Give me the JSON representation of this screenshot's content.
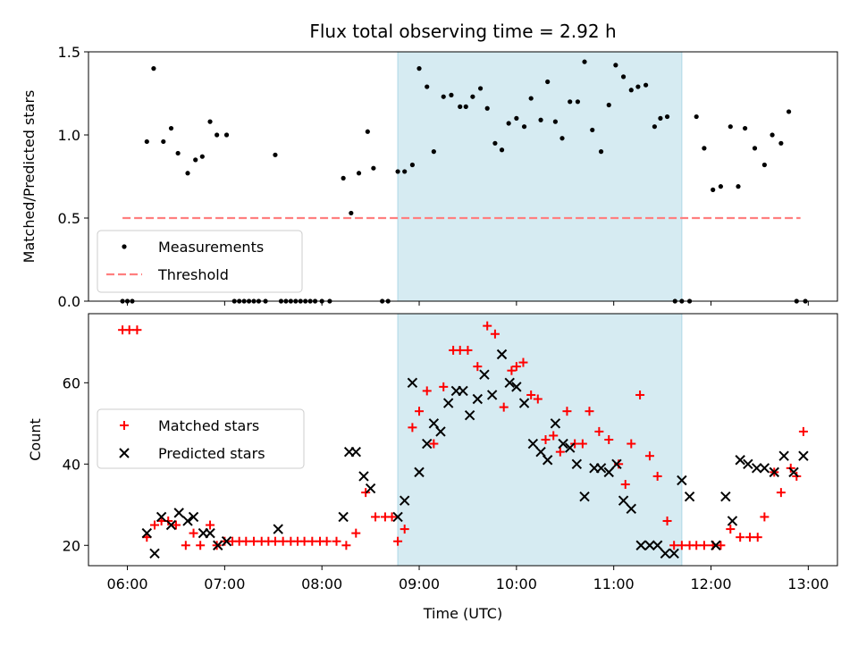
{
  "chart_data": [
    {
      "type": "scatter",
      "title": "Flux total observing time = 2.92 h",
      "xlabel": "",
      "ylabel": "Matched/Predicted stars",
      "x_unit": "hours (UTC)",
      "xlim": [
        5.6,
        13.3
      ],
      "ylim": [
        0,
        1.5
      ],
      "yticks": [
        0.0,
        0.5,
        1.0,
        1.5
      ],
      "ytick_labels": [
        "0.0",
        "0.5",
        "1.0",
        "1.5"
      ],
      "xticks": [
        6,
        7,
        8,
        9,
        10,
        11,
        12,
        13
      ],
      "xtick_labels": [
        "06:00",
        "07:00",
        "08:00",
        "09:00",
        "10:00",
        "11:00",
        "12:00",
        "13:00"
      ],
      "shade": {
        "x0": 8.78,
        "x1": 11.7,
        "color": "#add8e6"
      },
      "legend_position": "lower left",
      "series": [
        {
          "name": "Measurements",
          "marker": "dot",
          "color": "#000000",
          "x": [
            5.95,
            6.0,
            6.05,
            6.2,
            6.27,
            6.37,
            6.45,
            6.52,
            6.62,
            6.7,
            6.77,
            6.85,
            6.92,
            7.02,
            7.1,
            7.15,
            7.2,
            7.25,
            7.3,
            7.35,
            7.42,
            7.52,
            7.58,
            7.63,
            7.68,
            7.73,
            7.78,
            7.83,
            7.88,
            7.93,
            8.0,
            8.08,
            8.22,
            8.3,
            8.38,
            8.47,
            8.53,
            8.62,
            8.68,
            8.78,
            8.85,
            8.93,
            9.0,
            9.08,
            9.15,
            9.25,
            9.33,
            9.42,
            9.48,
            9.55,
            9.63,
            9.7,
            9.78,
            9.85,
            9.92,
            10.0,
            10.08,
            10.15,
            10.25,
            10.32,
            10.4,
            10.47,
            10.55,
            10.63,
            10.7,
            10.78,
            10.87,
            10.95,
            11.02,
            11.1,
            11.18,
            11.25,
            11.33,
            11.42,
            11.48,
            11.55,
            11.63,
            11.7,
            11.78,
            11.85,
            11.93,
            12.02,
            12.1,
            12.2,
            12.28,
            12.35,
            12.45,
            12.55,
            12.63,
            12.72,
            12.8,
            12.88,
            12.97
          ],
          "y": [
            0.0,
            0.0,
            0.0,
            0.96,
            1.4,
            0.96,
            1.04,
            0.89,
            0.77,
            0.85,
            0.87,
            1.08,
            1.0,
            1.0,
            0.0,
            0.0,
            0.0,
            0.0,
            0.0,
            0.0,
            0.0,
            0.88,
            0.0,
            0.0,
            0.0,
            0.0,
            0.0,
            0.0,
            0.0,
            0.0,
            0.0,
            0.0,
            0.74,
            0.53,
            0.77,
            1.02,
            0.8,
            0.0,
            0.0,
            0.78,
            0.78,
            0.82,
            1.4,
            1.29,
            0.9,
            1.23,
            1.24,
            1.17,
            1.17,
            1.23,
            1.28,
            1.16,
            0.95,
            0.91,
            1.07,
            1.1,
            1.05,
            1.22,
            1.09,
            1.32,
            1.08,
            0.98,
            1.2,
            1.2,
            1.44,
            1.03,
            0.9,
            1.18,
            1.42,
            1.35,
            1.27,
            1.29,
            1.3,
            1.05,
            1.1,
            1.11,
            0.0,
            0.0,
            0.0,
            1.11,
            0.92,
            0.67,
            0.69,
            1.05,
            0.69,
            1.04,
            0.92,
            0.82,
            1.0,
            0.95,
            1.14,
            0.0,
            0.0
          ]
        },
        {
          "name": "Threshold",
          "marker": "dashed-line",
          "color": "#ff7f7f",
          "x": [
            5.95,
            12.92
          ],
          "y": [
            0.5,
            0.5
          ]
        }
      ]
    },
    {
      "type": "scatter",
      "title": "",
      "xlabel": "Time (UTC)",
      "ylabel": "Count",
      "x_unit": "hours (UTC)",
      "xlim": [
        5.6,
        13.3
      ],
      "ylim": [
        15,
        77
      ],
      "yticks": [
        20,
        40,
        60
      ],
      "ytick_labels": [
        "20",
        "40",
        "60"
      ],
      "xticks": [
        6,
        7,
        8,
        9,
        10,
        11,
        12,
        13
      ],
      "xtick_labels": [
        "06:00",
        "07:00",
        "08:00",
        "09:00",
        "10:00",
        "11:00",
        "12:00",
        "13:00"
      ],
      "shade": {
        "x0": 8.78,
        "x1": 11.7,
        "color": "#add8e6"
      },
      "legend_position": "center left",
      "series": [
        {
          "name": "Matched stars",
          "marker": "plus",
          "color": "#ff0000",
          "x": [
            5.95,
            6.02,
            6.1,
            6.2,
            6.28,
            6.35,
            6.42,
            6.5,
            6.6,
            6.68,
            6.75,
            6.85,
            6.92,
            7.0,
            7.08,
            7.15,
            7.22,
            7.3,
            7.38,
            7.45,
            7.52,
            7.6,
            7.68,
            7.75,
            7.82,
            7.9,
            7.98,
            8.05,
            8.15,
            8.25,
            8.35,
            8.45,
            8.55,
            8.65,
            8.72,
            8.78,
            8.85,
            8.93,
            9.0,
            9.08,
            9.15,
            9.25,
            9.35,
            9.42,
            9.5,
            9.6,
            9.7,
            9.78,
            9.87,
            9.95,
            10.0,
            10.07,
            10.15,
            10.22,
            10.3,
            10.38,
            10.45,
            10.52,
            10.6,
            10.68,
            10.75,
            10.85,
            10.95,
            11.05,
            11.12,
            11.18,
            11.27,
            11.37,
            11.45,
            11.55,
            11.62,
            11.7,
            11.78,
            11.85,
            11.93,
            12.02,
            12.1,
            12.2,
            12.3,
            12.4,
            12.48,
            12.55,
            12.65,
            12.72,
            12.82,
            12.88,
            12.95
          ],
          "y": [
            73,
            73,
            73,
            22,
            25,
            26,
            26,
            25,
            20,
            23,
            20,
            25,
            20,
            21,
            21,
            21,
            21,
            21,
            21,
            21,
            21,
            21,
            21,
            21,
            21,
            21,
            21,
            21,
            21,
            20,
            23,
            33,
            27,
            27,
            27,
            21,
            24,
            49,
            53,
            58,
            45,
            59,
            68,
            68,
            68,
            64,
            74,
            72,
            54,
            63,
            64,
            65,
            57,
            56,
            46,
            47,
            43,
            53,
            45,
            45,
            53,
            48,
            46,
            40,
            35,
            45,
            57,
            42,
            37,
            26,
            20,
            20,
            20,
            20,
            20,
            20,
            20,
            24,
            22,
            22,
            22,
            27,
            38,
            33,
            39,
            37,
            48
          ]
        },
        {
          "name": "Predicted stars",
          "marker": "x",
          "color": "#000000",
          "x": [
            6.2,
            6.28,
            6.35,
            6.45,
            6.53,
            6.62,
            6.68,
            6.78,
            6.85,
            6.93,
            7.02,
            7.55,
            8.22,
            8.28,
            8.35,
            8.43,
            8.5,
            8.78,
            8.85,
            8.93,
            9.0,
            9.08,
            9.15,
            9.22,
            9.3,
            9.38,
            9.45,
            9.52,
            9.6,
            9.67,
            9.75,
            9.85,
            9.93,
            10.0,
            10.08,
            10.17,
            10.25,
            10.32,
            10.4,
            10.48,
            10.55,
            10.62,
            10.7,
            10.8,
            10.87,
            10.95,
            11.03,
            11.1,
            11.18,
            11.28,
            11.37,
            11.45,
            11.53,
            11.62,
            11.7,
            11.78,
            12.05,
            12.15,
            12.22,
            12.3,
            12.38,
            12.47,
            12.55,
            12.65,
            12.75,
            12.85,
            12.95
          ],
          "y": [
            23,
            18,
            27,
            25,
            28,
            26,
            27,
            23,
            23,
            20,
            21,
            24,
            27,
            43,
            43,
            37,
            34,
            27,
            31,
            60,
            38,
            45,
            50,
            48,
            55,
            58,
            58,
            52,
            56,
            62,
            57,
            67,
            60,
            59,
            55,
            45,
            43,
            41,
            50,
            45,
            44,
            40,
            32,
            39,
            39,
            38,
            40,
            31,
            29,
            20,
            20,
            20,
            18,
            18,
            36,
            32,
            20,
            32,
            26,
            41,
            40,
            39,
            39,
            38,
            42,
            38,
            42
          ]
        }
      ]
    }
  ]
}
